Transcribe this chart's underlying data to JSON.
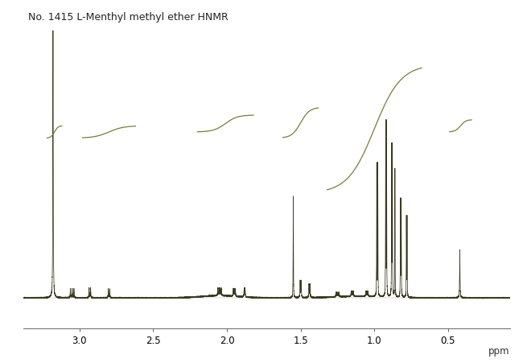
{
  "title": "No. 1415 L-Menthyl methyl ether HNMR",
  "xlabel": "ppm",
  "xmin": 3.38,
  "xmax": 0.08,
  "background_color": "#ffffff",
  "spectrum_color": "#3a3a20",
  "integral_color": "#7a7a40",
  "title_fontsize": 9,
  "xticks": [
    3.0,
    2.5,
    2.0,
    1.5,
    1.0,
    0.5
  ],
  "peak_defs": [
    [
      3.18,
      1.0,
      0.003,
      1,
      0
    ],
    [
      3.05,
      0.055,
      0.003,
      3,
      0.012
    ],
    [
      2.93,
      0.04,
      0.003,
      2,
      0.01
    ],
    [
      2.8,
      0.035,
      0.003,
      2,
      0.009
    ],
    [
      2.05,
      0.06,
      0.003,
      4,
      0.008
    ],
    [
      1.95,
      0.045,
      0.003,
      3,
      0.007
    ],
    [
      1.88,
      0.035,
      0.003,
      2,
      0.006
    ],
    [
      1.55,
      0.38,
      0.002,
      1,
      0
    ],
    [
      1.5,
      0.07,
      0.003,
      2,
      0.007
    ],
    [
      1.44,
      0.055,
      0.003,
      2,
      0.007
    ],
    [
      1.25,
      0.035,
      0.003,
      4,
      0.007
    ],
    [
      1.15,
      0.03,
      0.003,
      3,
      0.007
    ],
    [
      1.05,
      0.03,
      0.003,
      3,
      0.007
    ],
    [
      0.98,
      0.55,
      0.0018,
      2,
      0.007
    ],
    [
      0.92,
      0.72,
      0.0018,
      2,
      0.006
    ],
    [
      0.88,
      0.62,
      0.0018,
      2,
      0.005
    ],
    [
      0.86,
      0.48,
      0.0018,
      1,
      0
    ],
    [
      0.82,
      0.4,
      0.0018,
      2,
      0.005
    ],
    [
      0.78,
      0.33,
      0.0018,
      2,
      0.005
    ],
    [
      0.42,
      0.18,
      0.003,
      1,
      0
    ]
  ],
  "integral_regions": [
    [
      3.22,
      3.12,
      0.6,
      0.04,
      0.012
    ],
    [
      2.98,
      2.62,
      0.6,
      0.04,
      0.05
    ],
    [
      2.2,
      1.82,
      0.62,
      0.055,
      0.04
    ],
    [
      1.62,
      1.38,
      0.6,
      0.1,
      0.03
    ],
    [
      1.32,
      0.68,
      0.42,
      0.42,
      0.09
    ],
    [
      0.49,
      0.34,
      0.62,
      0.04,
      0.018
    ]
  ]
}
